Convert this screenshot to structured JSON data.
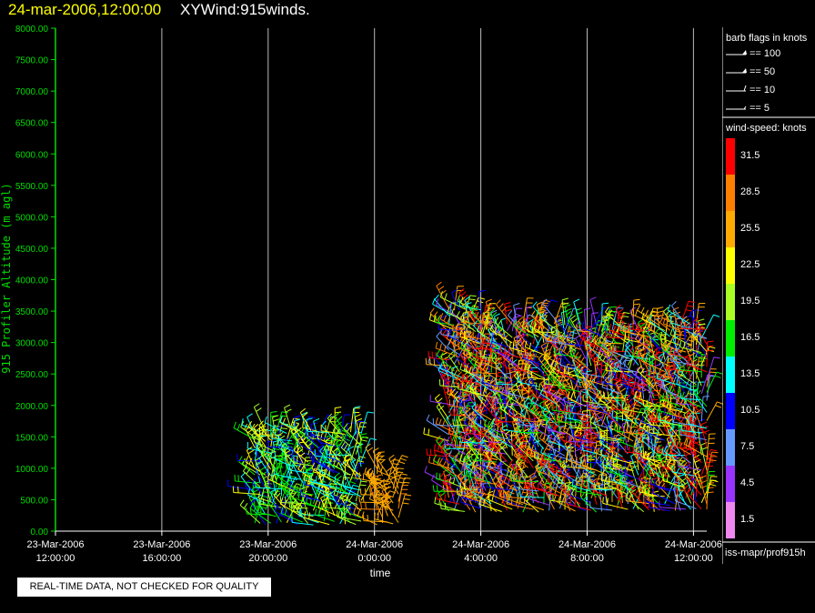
{
  "title": {
    "date": "24-mar-2006,12:00:00",
    "name": "XYWind:915winds."
  },
  "colors": {
    "axis": "#00dd00",
    "grid": "#bbbbbb",
    "background": "#000000",
    "title_date": "#ffff00"
  },
  "chart_data": {
    "type": "scatter",
    "subtype": "wind-barb time-height",
    "xlabel": "time",
    "ylabel": "915 Profiler Altitude (m agl)",
    "x_ticks": [
      {
        "t": 0,
        "line1": "23-Mar-2006",
        "line2": "12:00:00"
      },
      {
        "t": 4,
        "line1": "23-Mar-2006",
        "line2": "16:00:00"
      },
      {
        "t": 8,
        "line1": "23-Mar-2006",
        "line2": "20:00:00"
      },
      {
        "t": 12,
        "line1": "24-Mar-2006",
        "line2": "0:00:00"
      },
      {
        "t": 16,
        "line1": "24-Mar-2006",
        "line2": "4:00:00"
      },
      {
        "t": 20,
        "line1": "24-Mar-2006",
        "line2": "8:00:00"
      },
      {
        "t": 24,
        "line1": "24-Mar-2006",
        "line2": "12:00:00"
      }
    ],
    "y_ticks": [
      "0.00",
      "500.00",
      "1000.00",
      "1500.00",
      "2000.00",
      "2500.00",
      "3000.00",
      "3500.00",
      "4000.00",
      "4500.00",
      "5000.00",
      "5500.00",
      "6000.00",
      "6500.00",
      "7000.00",
      "7500.00",
      "8000.00"
    ],
    "ylim": [
      0,
      8000
    ],
    "xlim_hours": [
      0,
      24.5
    ],
    "vertical_grid": true,
    "data_clusters": [
      {
        "t_start": 7.5,
        "t_end": 11.5,
        "alt_min": 100,
        "alt_max": 1600,
        "speed_min": 10,
        "speed_max": 24
      },
      {
        "t_start": 12.1,
        "t_end": 12.9,
        "alt_min": 100,
        "alt_max": 1000,
        "speed_min": 24,
        "speed_max": 28
      },
      {
        "t_start": 14.8,
        "t_end": 16.0,
        "alt_min": 300,
        "alt_max": 3600,
        "speed_min": 4,
        "speed_max": 34
      },
      {
        "t_start": 16.0,
        "t_end": 24.5,
        "alt_min": 300,
        "alt_max": 3300,
        "speed_min": 4,
        "speed_max": 34
      }
    ]
  },
  "legend": {
    "barb_title": "barb flags in knots",
    "barbs": [
      "== 100",
      "== 50",
      "== 10",
      "== 5"
    ],
    "speed_title": "wind-speed: knots",
    "speed_scale": [
      {
        "label": "31.5",
        "color": "#ff0000"
      },
      {
        "label": "28.5",
        "color": "#ff8000"
      },
      {
        "label": "25.5",
        "color": "#ffaa00"
      },
      {
        "label": "22.5",
        "color": "#ffff00"
      },
      {
        "label": "19.5",
        "color": "#aaff22"
      },
      {
        "label": "16.5",
        "color": "#00ee00"
      },
      {
        "label": "13.5",
        "color": "#00ffff"
      },
      {
        "label": "10.5",
        "color": "#0000ff"
      },
      {
        "label": "7.5",
        "color": "#6699ff"
      },
      {
        "label": "4.5",
        "color": "#9933ff"
      },
      {
        "label": "1.5",
        "color": "#ee88ee"
      }
    ]
  },
  "footer": {
    "source_id": "iss-mapr/prof915h",
    "quality_note": "REAL-TIME DATA, NOT CHECKED FOR QUALITY"
  }
}
